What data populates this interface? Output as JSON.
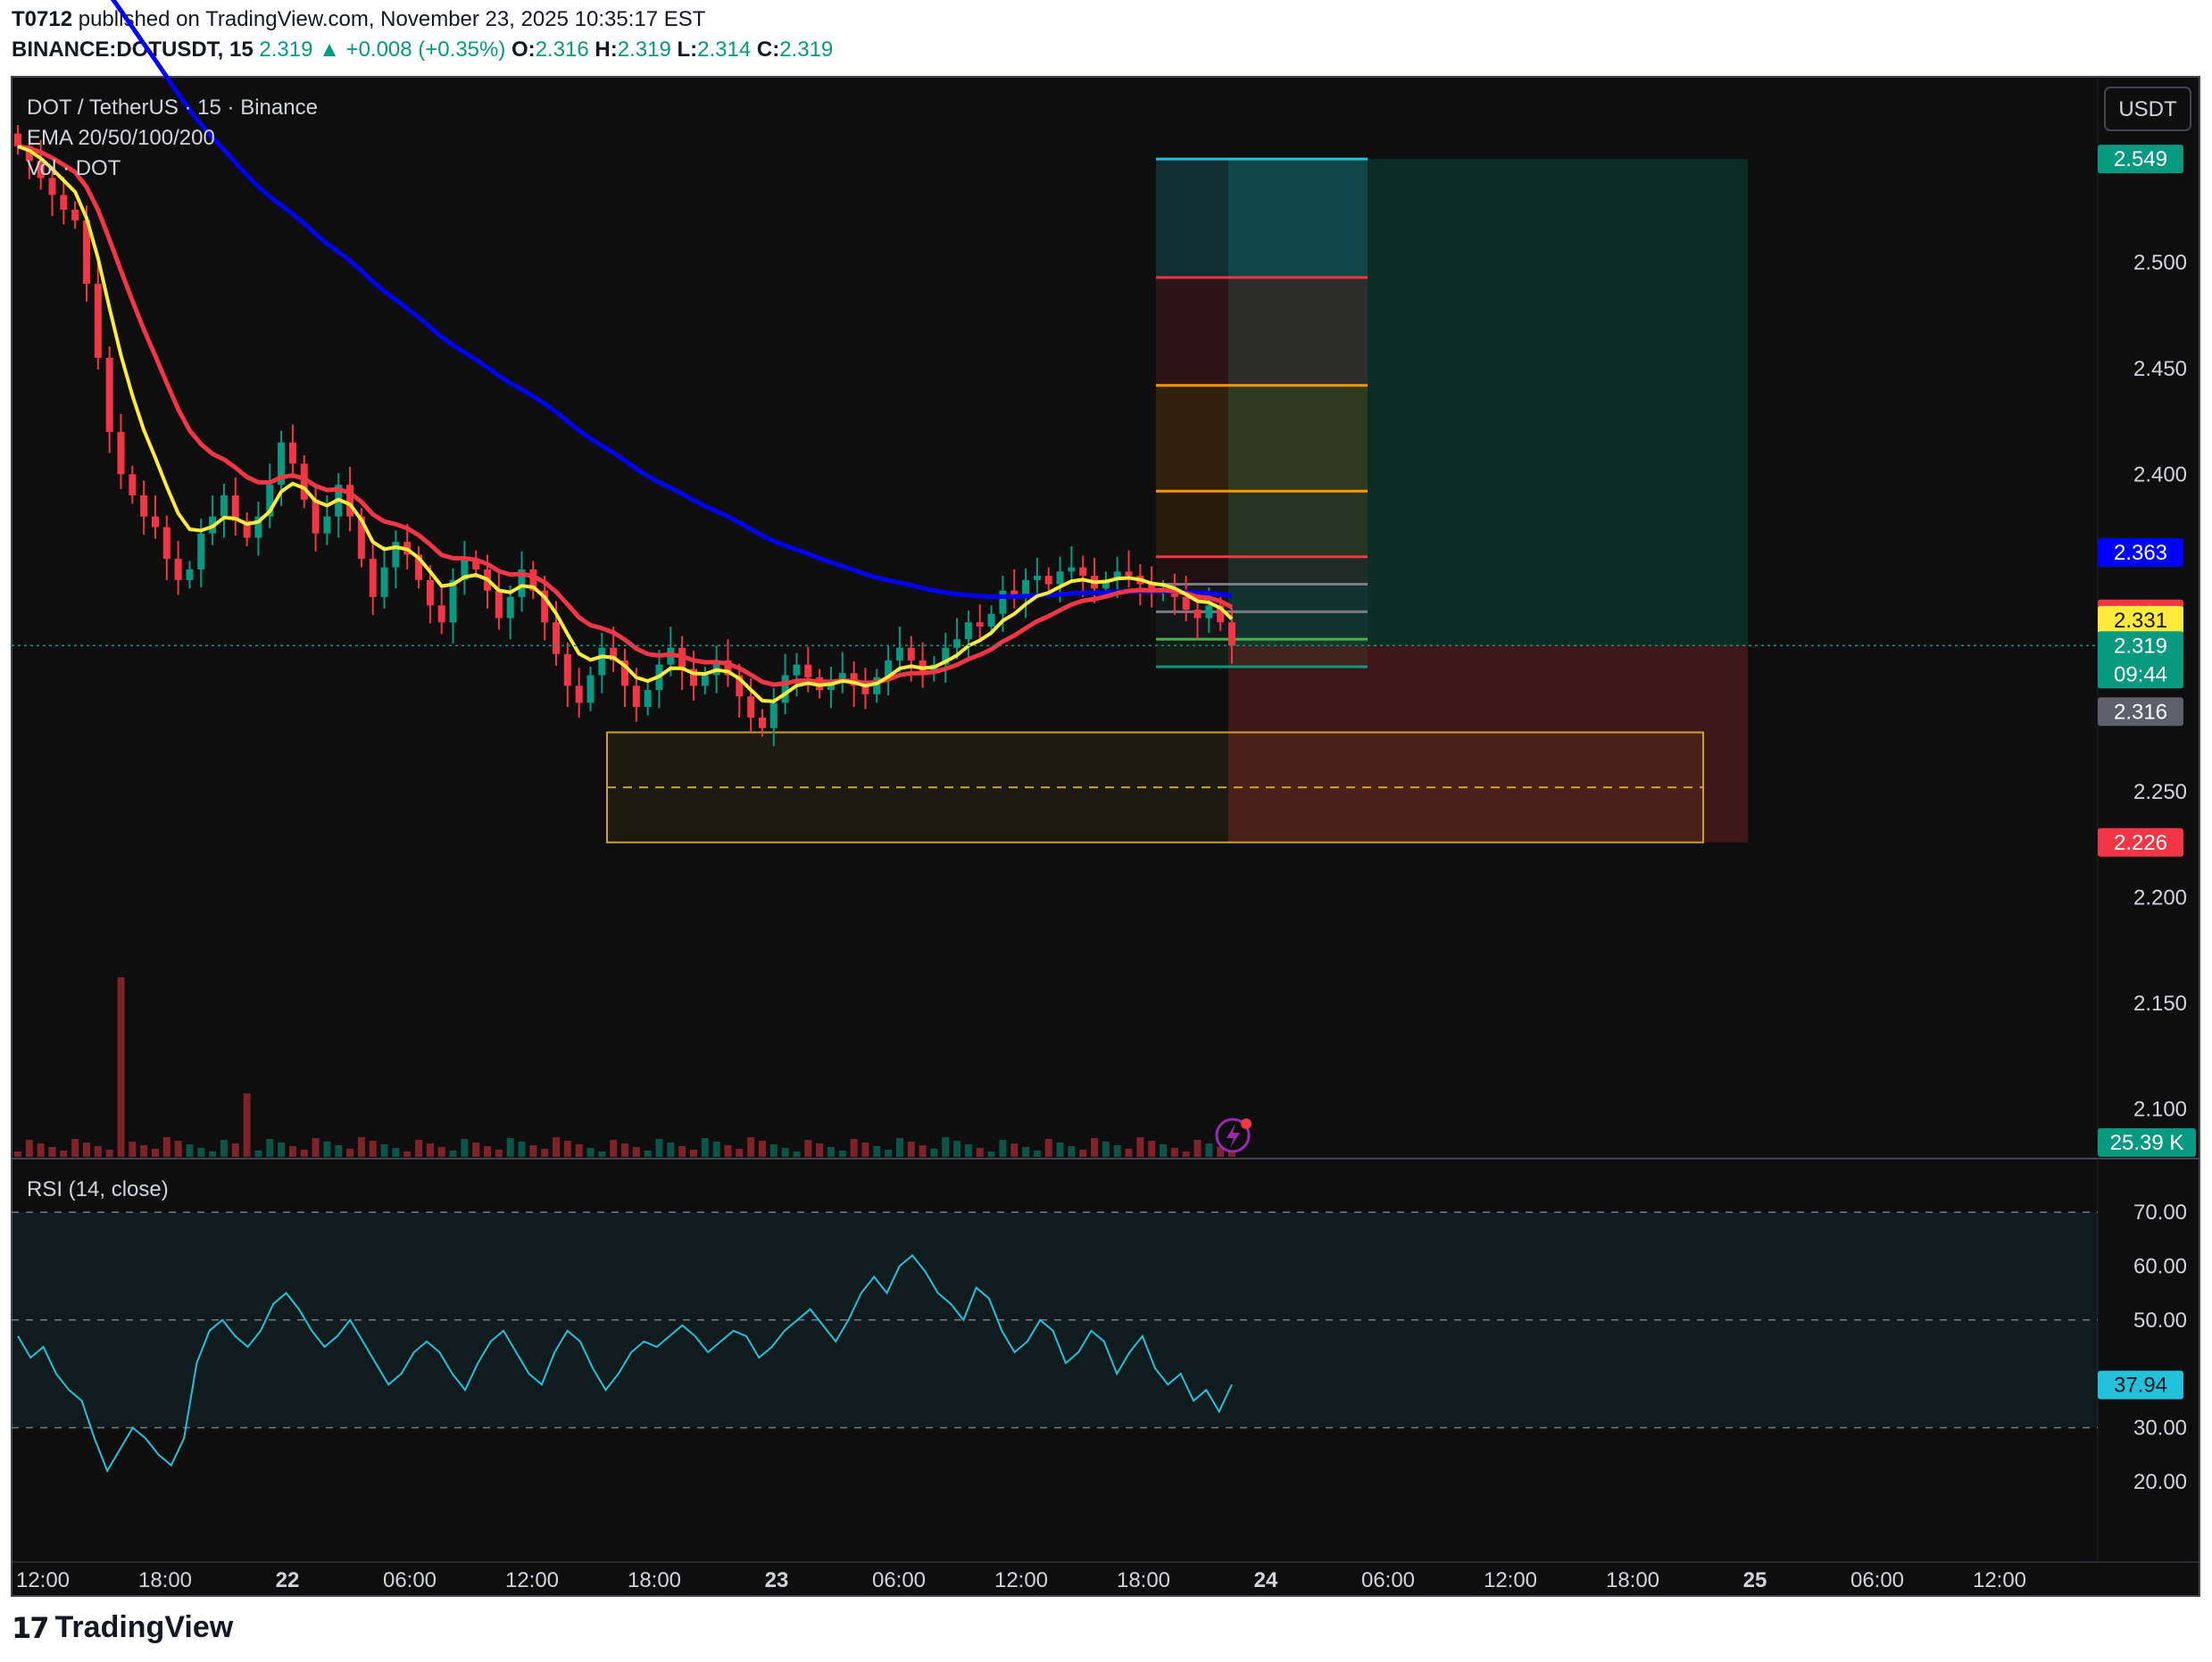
{
  "header": {
    "author": "T0712",
    "published": "published on TradingView.com, November 23, 2025 10:35:17 EST",
    "symbol": "BINANCE:DOTUSDT, 15",
    "last": "2.319",
    "change": "+0.008 (+0.35%)",
    "o_label": "O:",
    "o": "2.316",
    "h_label": "H:",
    "h": "2.319",
    "l_label": "L:",
    "l": "2.314",
    "c_label": "C:",
    "c": "2.319"
  },
  "legend": {
    "title": "DOT / TetherUS · 15 · Binance",
    "ema": "EMA 20/50/100/200",
    "vol": "Vol · DOT",
    "rsi": "RSI (14, close)"
  },
  "currency_button": "USDT",
  "footer": {
    "brand": "TradingView"
  },
  "colors": {
    "bg": "#0e0e0e",
    "up": "#089981",
    "down": "#f23645",
    "ema20": "#ffeb3b",
    "ema50": "#f23645",
    "ema200": "#0000ff",
    "rsi": "#22c1dc",
    "zone": "#c9a227"
  },
  "chart_data": {
    "type": "candlestick",
    "price_axis": {
      "ticks": [
        "2.500",
        "2.450",
        "2.400",
        "2.250",
        "2.200",
        "2.150",
        "2.100"
      ],
      "range": [
        2.085,
        2.56
      ]
    },
    "time_axis": {
      "ticks": [
        "12:00",
        "18:00",
        "22",
        "06:00",
        "12:00",
        "18:00",
        "23",
        "06:00",
        "12:00",
        "18:00",
        "24",
        "06:00",
        "12:00",
        "18:00",
        "25",
        "06:00",
        "12:00"
      ],
      "bold": [
        "22",
        "23",
        "24",
        "25"
      ]
    },
    "close_series": [
      2.555,
      2.548,
      2.54,
      2.532,
      2.525,
      2.52,
      2.49,
      2.455,
      2.42,
      2.4,
      2.39,
      2.38,
      2.375,
      2.36,
      2.35,
      2.355,
      2.372,
      2.38,
      2.39,
      2.378,
      2.37,
      2.38,
      2.395,
      2.415,
      2.405,
      2.388,
      2.372,
      2.38,
      2.395,
      2.38,
      2.36,
      2.342,
      2.356,
      2.368,
      2.362,
      2.35,
      2.338,
      2.33,
      2.35,
      2.36,
      2.355,
      2.345,
      2.332,
      2.342,
      2.355,
      2.345,
      2.33,
      2.315,
      2.3,
      2.292,
      2.305,
      2.318,
      2.312,
      2.3,
      2.29,
      2.298,
      2.31,
      2.318,
      2.308,
      2.3,
      2.305,
      2.312,
      2.305,
      2.295,
      2.285,
      2.28,
      2.292,
      2.305,
      2.31,
      2.304,
      2.298,
      2.302,
      2.306,
      2.3,
      2.296,
      2.304,
      2.312,
      2.318,
      2.312,
      2.306,
      2.31,
      2.318,
      2.322,
      2.33,
      2.328,
      2.334,
      2.345,
      2.342,
      2.35,
      2.352,
      2.348,
      2.354,
      2.356,
      2.352,
      2.346,
      2.35,
      2.354,
      2.352,
      2.348,
      2.344,
      2.346,
      2.342,
      2.336,
      2.332,
      2.338,
      2.33,
      2.319
    ],
    "annotated_prices": [
      {
        "value": "2.549",
        "bg": "#089981"
      },
      {
        "value": "2.363",
        "bg": "#0000ff"
      },
      {
        "value": "2.334",
        "bg": "#f23645"
      },
      {
        "value": "2.331",
        "bg": "#ffeb3b"
      },
      {
        "value": "2.319",
        "bg": "#089981"
      },
      {
        "value": "2.316",
        "bg": "#5d606b"
      },
      {
        "value": "2.226",
        "bg": "#f23645"
      }
    ],
    "countdown": "09:44",
    "volume_label": "25.39 K",
    "long_position": {
      "target": 2.549,
      "entry": 2.319,
      "stop": 2.226
    },
    "fib_levels": [
      2.549,
      2.493,
      2.442,
      2.392,
      2.361,
      2.348,
      2.335,
      2.322,
      2.309
    ],
    "demand_zone": {
      "top": 2.278,
      "bottom": 2.226,
      "mid": 2.252
    },
    "rsi": {
      "axis_ticks": [
        "70.00",
        "60.00",
        "50.00",
        "30.00",
        "20.00"
      ],
      "range": [
        15,
        73
      ],
      "bands": [
        70,
        50,
        30
      ],
      "last": "37.94",
      "values": [
        47,
        43,
        45,
        40,
        37,
        35,
        28,
        22,
        26,
        30,
        28,
        25,
        23,
        28,
        42,
        48,
        50,
        47,
        45,
        48,
        53,
        55,
        52,
        48,
        45,
        47,
        50,
        46,
        42,
        38,
        40,
        44,
        46,
        44,
        40,
        37,
        42,
        46,
        48,
        44,
        40,
        38,
        44,
        48,
        46,
        41,
        37,
        40,
        44,
        46,
        45,
        47,
        49,
        47,
        44,
        46,
        48,
        47,
        43,
        45,
        48,
        50,
        52,
        49,
        46,
        50,
        55,
        58,
        55,
        60,
        62,
        59,
        55,
        53,
        50,
        56,
        54,
        48,
        44,
        46,
        50,
        48,
        42,
        44,
        48,
        46,
        40,
        44,
        47,
        41,
        38,
        40,
        35,
        37,
        33,
        38
      ]
    }
  }
}
